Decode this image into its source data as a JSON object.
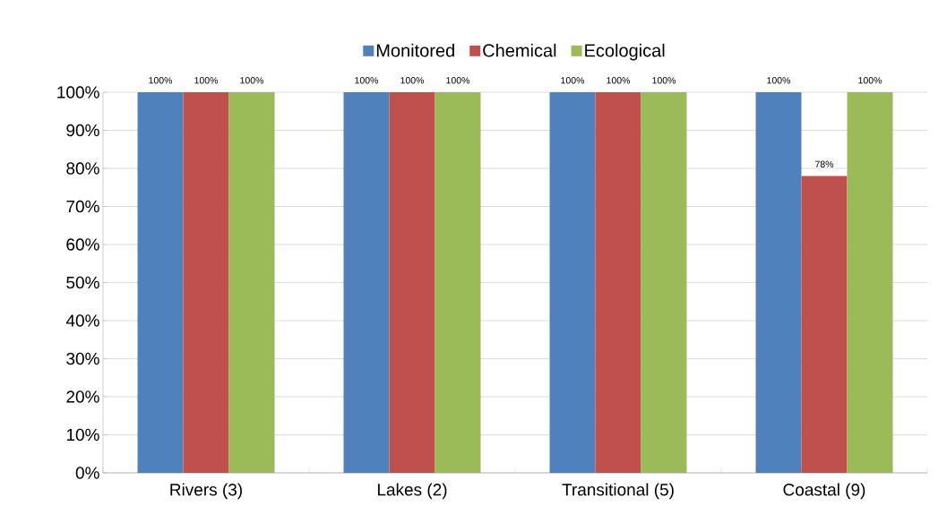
{
  "chart_data": {
    "type": "bar",
    "categories": [
      "Rivers (3)",
      "Lakes (2)",
      "Transitional (5)",
      "Coastal (9)"
    ],
    "series": [
      {
        "name": "Monitored",
        "color": "#4f81bd",
        "values": [
          100,
          100,
          100,
          100
        ],
        "value_labels": [
          "100%",
          "100%",
          "100%",
          "100%"
        ]
      },
      {
        "name": "Chemical",
        "color": "#c0504d",
        "values": [
          100,
          100,
          100,
          78
        ],
        "value_labels": [
          "100%",
          "100%",
          "100%",
          "78%"
        ]
      },
      {
        "name": "Ecological",
        "color": "#9bbb59",
        "values": [
          100,
          100,
          100,
          100
        ],
        "value_labels": [
          "100%",
          "100%",
          "100%",
          "100%"
        ]
      }
    ],
    "ylim": [
      0,
      100
    ],
    "yticks": [
      {
        "value": 0,
        "label": "0%"
      },
      {
        "value": 10,
        "label": "10%"
      },
      {
        "value": 20,
        "label": "20%"
      },
      {
        "value": 30,
        "label": "30%"
      },
      {
        "value": 40,
        "label": "40%"
      },
      {
        "value": 50,
        "label": "50%"
      },
      {
        "value": 60,
        "label": "60%"
      },
      {
        "value": 70,
        "label": "70%"
      },
      {
        "value": 80,
        "label": "80%"
      },
      {
        "value": 90,
        "label": "90%"
      },
      {
        "value": 100,
        "label": "100%"
      }
    ],
    "grid": "y",
    "legend": "top"
  }
}
